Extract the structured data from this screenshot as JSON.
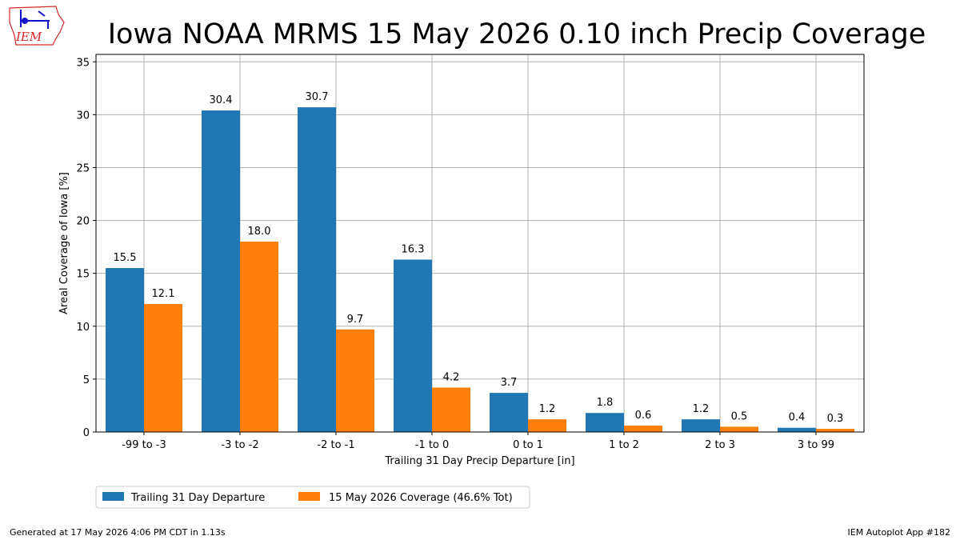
{
  "logo": {
    "text": "IEM"
  },
  "footer": {
    "left": "Generated at 17 May 2026 4:06 PM CDT in 1.13s",
    "right": "IEM Autoplot App #182"
  },
  "colors": {
    "series1": "#1f77b4",
    "series2": "#ff7f0e",
    "grid": "#b0b0b0",
    "logo": "#d62728",
    "logo_mark": "#1010c8"
  },
  "chart_data": {
    "type": "bar",
    "title": "Iowa NOAA MRMS 15 May 2026 0.10 inch Precip Coverage",
    "xlabel": "Trailing 31 Day Precip Departure [in]",
    "ylabel": "Areal Coverage of Iowa [%]",
    "ylim": [
      0,
      35.7
    ],
    "yticks": [
      0,
      5,
      10,
      15,
      20,
      25,
      30,
      35
    ],
    "grid": true,
    "legend_position": "below-left",
    "categories": [
      "-99 to -3",
      "-3 to -2",
      "-2 to -1",
      "-1 to 0",
      "0 to 1",
      "1 to 2",
      "2 to 3",
      "3 to 99"
    ],
    "series": [
      {
        "name": "Trailing 31 Day Departure",
        "values": [
          15.5,
          30.4,
          30.7,
          16.3,
          3.7,
          1.8,
          1.2,
          0.4
        ]
      },
      {
        "name": "15 May 2026 Coverage (46.6% Tot)",
        "values": [
          12.1,
          18.0,
          9.7,
          4.2,
          1.2,
          0.6,
          0.5,
          0.3
        ]
      }
    ]
  }
}
